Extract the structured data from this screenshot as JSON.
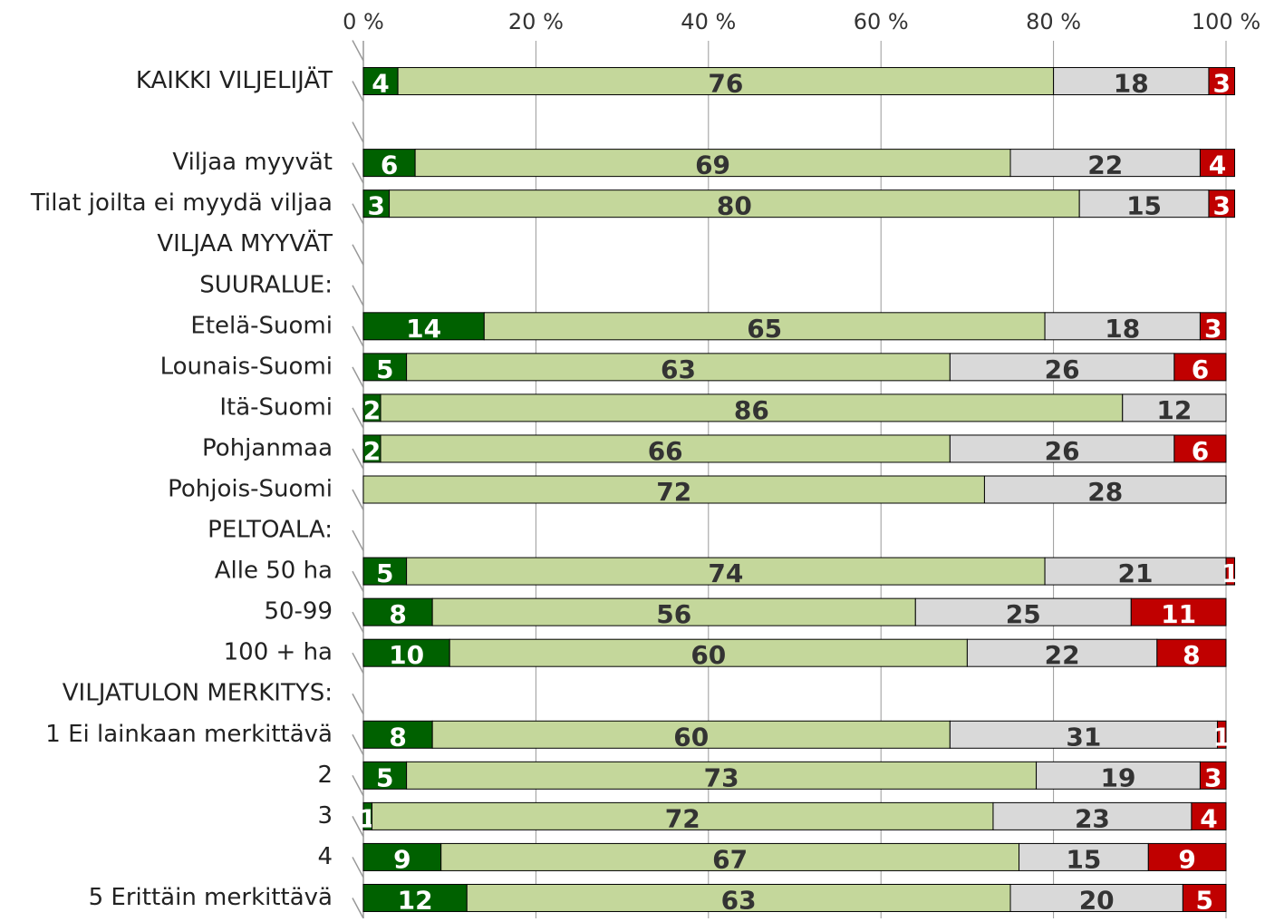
{
  "chart_data": {
    "type": "stacked_bar_horizontal_percent",
    "categories": [
      "KAIKKI VILJELIJÄT",
      null,
      "Viljaa myyvät",
      "Tilat joilta ei myydä viljaa",
      "VILJAA MYYVÄT",
      "SUURALUE:",
      "Etelä-Suomi",
      "Lounais-Suomi",
      "Itä-Suomi",
      "Pohjanmaa",
      "Pohjois-Suomi",
      "PELTOALA:",
      "Alle 50 ha",
      "50-99",
      "100 + ha",
      "VILJATULON MERKITYS:",
      "1 Ei lainkaan merkittävä",
      "2",
      "3",
      "4",
      "5 Erittäin merkittävä"
    ],
    "series": [
      {
        "color": "#006100",
        "values": [
          4,
          null,
          6,
          3,
          null,
          null,
          14,
          5,
          2,
          2,
          null,
          null,
          5,
          8,
          10,
          null,
          8,
          5,
          1,
          9,
          12
        ]
      },
      {
        "color": "#c4d79b",
        "values": [
          76,
          null,
          69,
          80,
          null,
          null,
          65,
          63,
          86,
          66,
          72,
          null,
          74,
          56,
          60,
          null,
          60,
          73,
          72,
          67,
          63
        ]
      },
      {
        "color": "#d9d9d9",
        "values": [
          18,
          null,
          22,
          15,
          null,
          null,
          18,
          26,
          12,
          26,
          28,
          null,
          21,
          25,
          22,
          null,
          31,
          19,
          23,
          15,
          20
        ]
      },
      {
        "color": "#c00000",
        "values": [
          3,
          null,
          4,
          3,
          null,
          null,
          3,
          6,
          null,
          6,
          null,
          null,
          1,
          11,
          8,
          null,
          1,
          3,
          4,
          9,
          5
        ]
      }
    ],
    "xlim": [
      0,
      100
    ],
    "xticks": [
      {
        "value": 0,
        "label": "0 %"
      },
      {
        "value": 20,
        "label": "20 %"
      },
      {
        "value": 40,
        "label": "40 %"
      },
      {
        "value": 60,
        "label": "60 %"
      },
      {
        "value": 80,
        "label": "80 %"
      },
      {
        "value": 100,
        "label": "100 %"
      }
    ],
    "grid": true
  }
}
